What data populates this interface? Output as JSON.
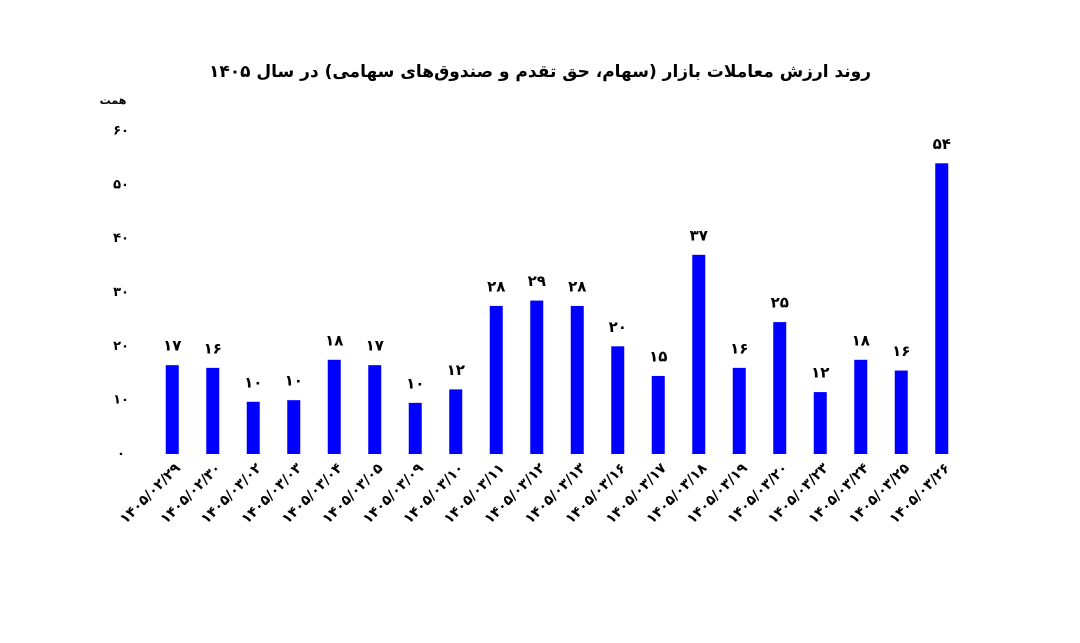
{
  "chart_data": {
    "type": "bar",
    "title": "روند ارزش معاملات بازار (سهام، حق تقدم و صندوق‌های سهامی) در سال ۱۴۰۵",
    "y_label": "همت",
    "categories": [
      "۱۴۰۵/۰۲/۲۹",
      "۱۴۰۵/۰۲/۳۰",
      "۱۴۰۵/۰۳/۰۲",
      "۱۴۰۵/۰۳/۰۳",
      "۱۴۰۵/۰۳/۰۴",
      "۱۴۰۵/۰۳/۰۵",
      "۱۴۰۵/۰۳/۰۹",
      "۱۴۰۵/۰۳/۱۰",
      "۱۴۰۵/۰۳/۱۱",
      "۱۴۰۵/۰۳/۱۲",
      "۱۴۰۵/۰۳/۱۳",
      "۱۴۰۵/۰۳/۱۶",
      "۱۴۰۵/۰۳/۱۷",
      "۱۴۰۵/۰۳/۱۸",
      "۱۴۰۵/۰۳/۱۹",
      "۱۴۰۵/۰۳/۲۰",
      "۱۴۰۵/۰۳/۲۳",
      "۱۴۰۵/۰۳/۲۴",
      "۱۴۰۵/۰۳/۲۵",
      "۱۴۰۵/۰۳/۲۶"
    ],
    "values": [
      16.5,
      16,
      9.7,
      10,
      17.5,
      16.5,
      9.5,
      12,
      27.5,
      28.5,
      27.5,
      20,
      14.5,
      37,
      16,
      24.5,
      11.5,
      17.5,
      15.5,
      54
    ],
    "value_labels": [
      "۱۷",
      "۱۶",
      "۱۰",
      "۱۰",
      "۱۸",
      "۱۷",
      "۱۰",
      "۱۲",
      "۲۸",
      "۲۹",
      "۲۸",
      "۲۰",
      "۱۵",
      "۳۷",
      "۱۶",
      "۲۵",
      "۱۲",
      "۱۸",
      "۱۶",
      "۵۴"
    ],
    "color": "#0000ff",
    "ylim": [
      0,
      60
    ],
    "yticks": [
      {
        "value": 0,
        "label": "۰"
      },
      {
        "value": 10,
        "label": "۱۰"
      },
      {
        "value": 20,
        "label": "۲۰"
      },
      {
        "value": 30,
        "label": "۳۰"
      },
      {
        "value": 40,
        "label": "۴۰"
      },
      {
        "value": 50,
        "label": "۵۰"
      },
      {
        "value": 60,
        "label": "۶۰"
      }
    ],
    "grid": false
  }
}
